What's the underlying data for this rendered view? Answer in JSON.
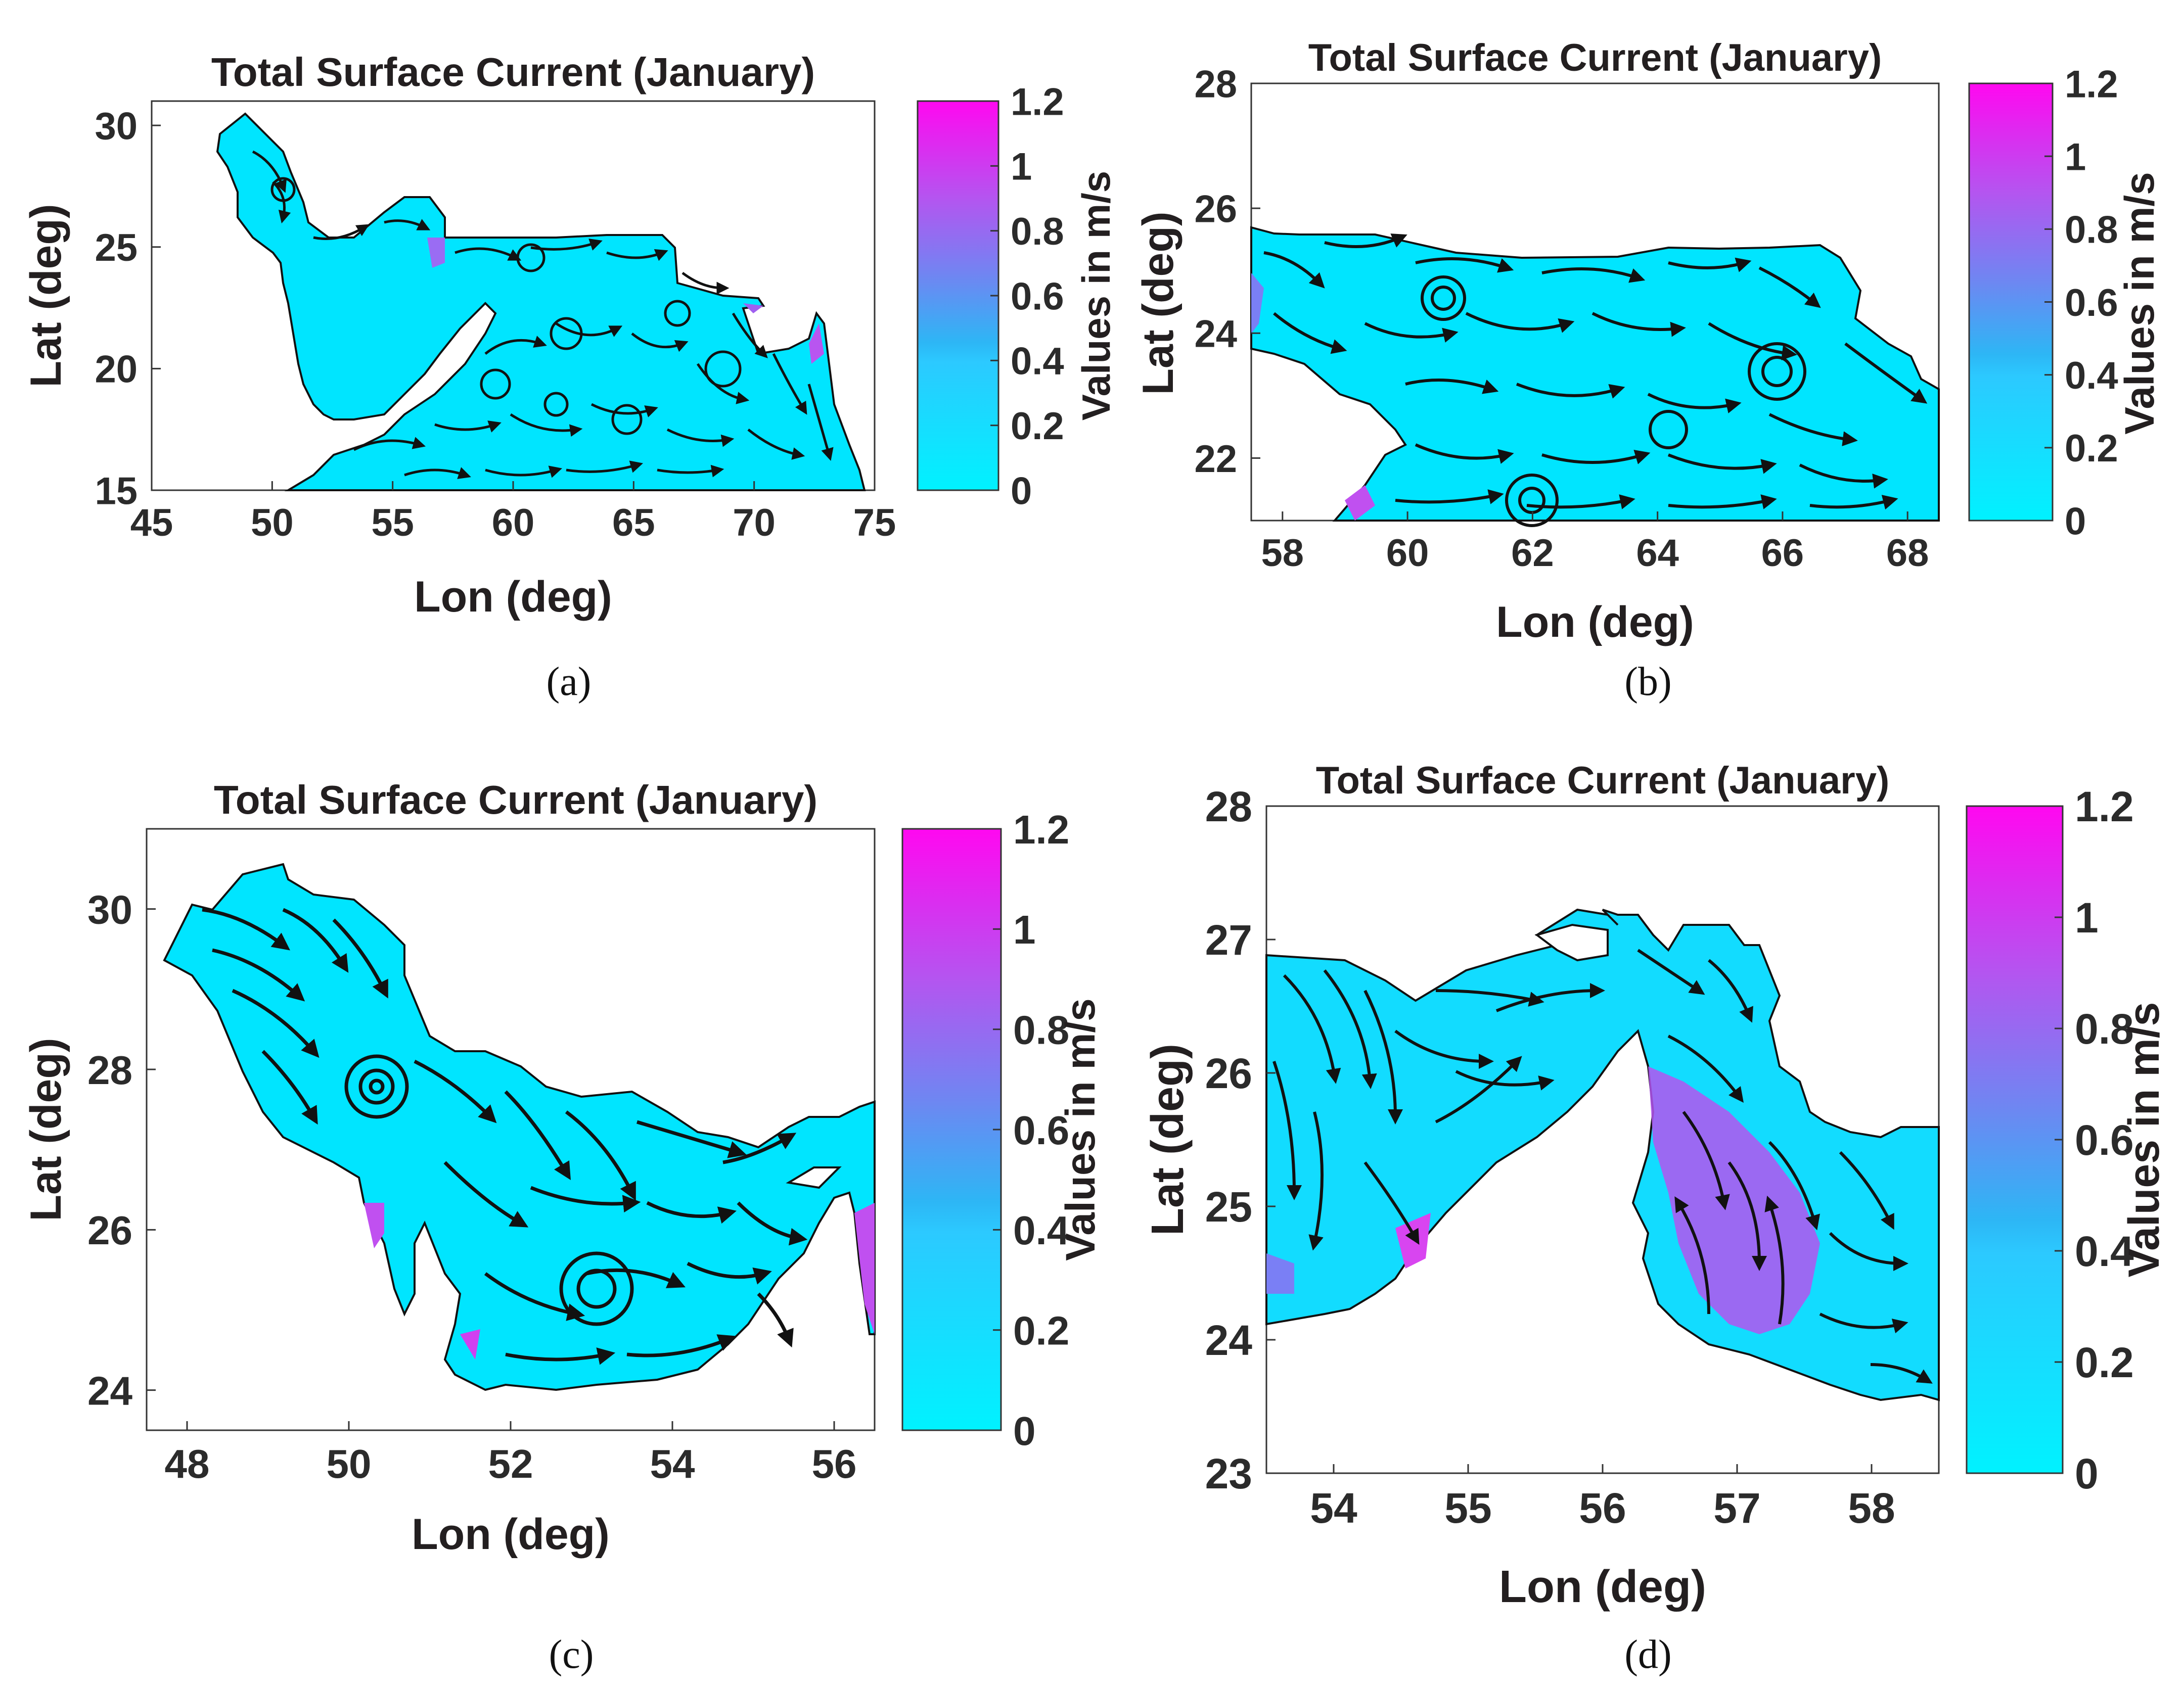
{
  "colors": {
    "low": "#00f2ff",
    "mid": "#2cc9ff",
    "mid2": "#7a7ff5",
    "high": "#ff08f0",
    "line": "#111111",
    "axis": "#333333"
  },
  "chart_data": [
    {
      "id": "a",
      "type": "streamline-map",
      "title": "Total Surface Current (January)",
      "xlabel": "Lon (deg)",
      "ylabel": "Lat (deg)",
      "xlim": [
        45,
        75
      ],
      "ylim": [
        15,
        31
      ],
      "xticks": [
        "45",
        "50",
        "55",
        "60",
        "65",
        "70",
        "75"
      ],
      "yticks": [
        "15",
        "20",
        "25",
        "30"
      ],
      "colorbar": {
        "label": "Values in m/s",
        "ticks": [
          "0",
          "0.2",
          "0.4",
          "0.6",
          "0.8",
          "1",
          "1.2"
        ],
        "min": 0,
        "max": 1.2
      },
      "caption": "(a)"
    },
    {
      "id": "b",
      "type": "streamline-map",
      "title": "Total Surface Current (January)",
      "xlabel": "Lon (deg)",
      "ylabel": "Lat (deg)",
      "xlim": [
        57.5,
        68.5
      ],
      "ylim": [
        21,
        28
      ],
      "xticks": [
        "58",
        "60",
        "62",
        "64",
        "66",
        "68"
      ],
      "yticks": [
        "22",
        "24",
        "26",
        "28"
      ],
      "colorbar": {
        "label": "Values in m/s",
        "ticks": [
          "0",
          "0.2",
          "0.4",
          "0.6",
          "0.8",
          "1",
          "1.2"
        ],
        "min": 0,
        "max": 1.2
      },
      "caption": "(b)"
    },
    {
      "id": "c",
      "type": "streamline-map",
      "title": "Total Surface Current (January)",
      "xlabel": "Lon (deg)",
      "ylabel": "Lat (deg)",
      "xlim": [
        47.5,
        56.5
      ],
      "ylim": [
        23.5,
        31
      ],
      "xticks": [
        "48",
        "50",
        "52",
        "54",
        "56"
      ],
      "yticks": [
        "24",
        "26",
        "28",
        "30"
      ],
      "colorbar": {
        "label": "Values in m/s",
        "ticks": [
          "0",
          "0.2",
          "0.4",
          "0.6",
          "0.8",
          "1",
          "1.2"
        ],
        "min": 0,
        "max": 1.2
      },
      "caption": "(c)"
    },
    {
      "id": "d",
      "type": "streamline-map",
      "title": "Total Surface Current (January)",
      "xlabel": "Lon (deg)",
      "ylabel": "Lat (deg)",
      "xlim": [
        53.5,
        58.5
      ],
      "ylim": [
        23,
        28
      ],
      "xticks": [
        "54",
        "55",
        "56",
        "57",
        "58"
      ],
      "yticks": [
        "23",
        "24",
        "25",
        "26",
        "27",
        "28"
      ],
      "colorbar": {
        "label": "Values in m/s",
        "ticks": [
          "0",
          "0.2",
          "0.4",
          "0.6",
          "0.8",
          "1",
          "1.2"
        ],
        "min": 0,
        "max": 1.2
      },
      "caption": "(d)"
    }
  ]
}
